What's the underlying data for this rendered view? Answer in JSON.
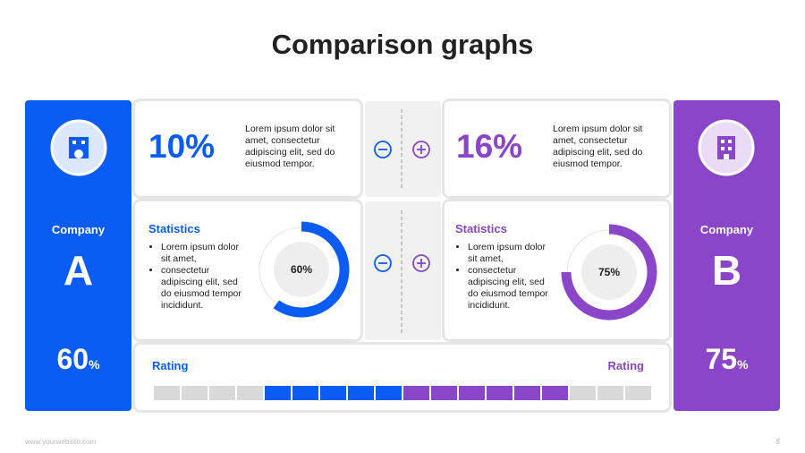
{
  "title": "Comparison graphs",
  "companies": [
    {
      "label": "Company",
      "letter": "A",
      "color": "#0a5cf5",
      "unit": "%",
      "headline": "10%",
      "headline_text": "Lorem ipsum dolor sit amet, consectetur adipiscing elit, sed do eiusmod tempor.",
      "stats_title": "Statistics",
      "bullets": [
        "Lorem ipsum dolor sit amet,",
        "consectetur adipiscing elit, sed do eiusmod tempor incididunt."
      ],
      "donut": {
        "value": 60,
        "label": "60%"
      }
    },
    {
      "label": "Company",
      "letter": "B",
      "color": "#8a45c8",
      "unit": "%",
      "headline": "16%",
      "headline_text": "Lorem ipsum dolor sit amet, consectetur adipiscing elit, sed do eiusmod tempor.",
      "stats_title": "Statistics",
      "bullets": [
        "Lorem ipsum dolor sit amet,",
        "consectetur adipiscing elit, sed do eiusmod tempor incididunt."
      ],
      "donut": {
        "value": 75,
        "label": "75%"
      }
    }
  ],
  "rating": {
    "labels": [
      "Rating",
      "Rating"
    ]
  },
  "footer": {
    "website": "www.yourwebsite.com",
    "page": "6"
  }
}
